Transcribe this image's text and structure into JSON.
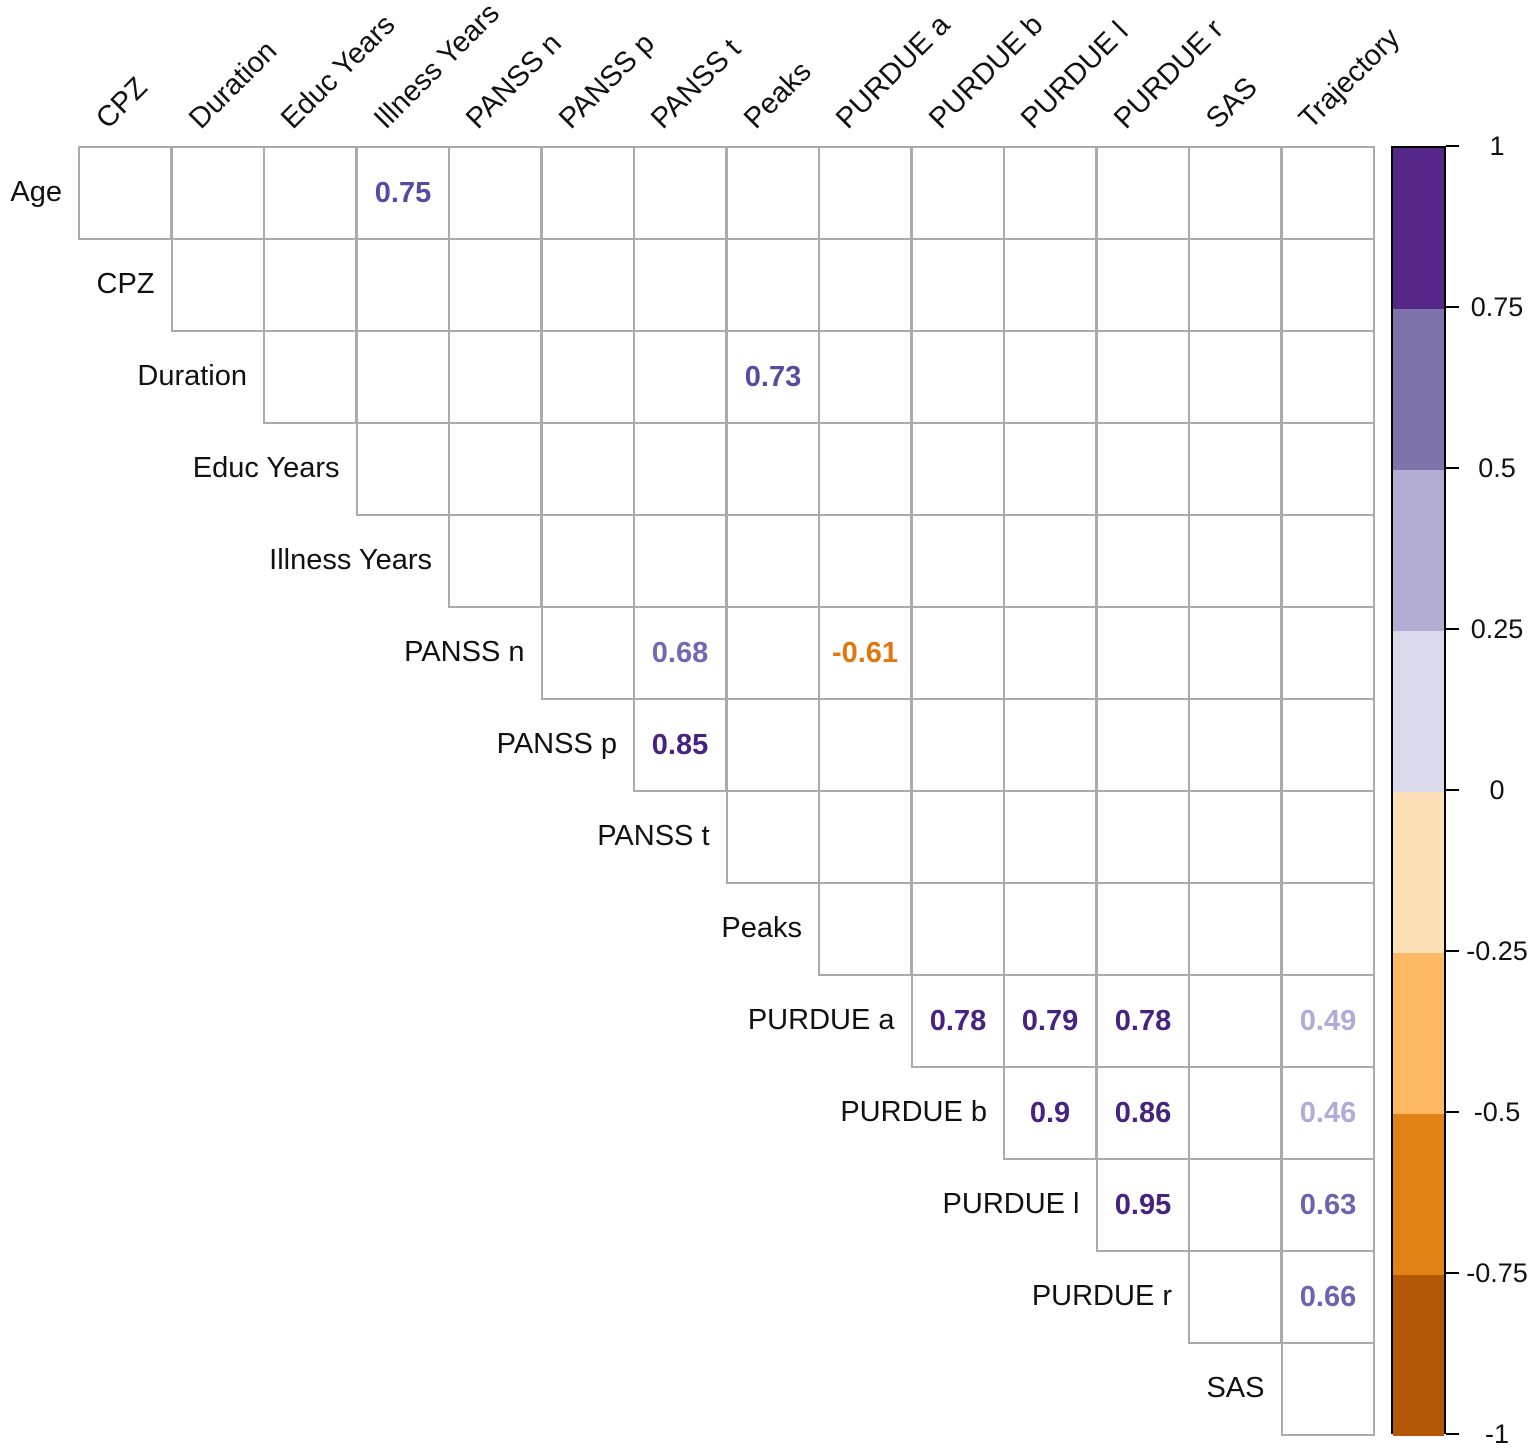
{
  "figure": {
    "background": "#ffffff",
    "grid_line_color": "#ababab",
    "label_color": "#111111"
  },
  "matrix": {
    "row_labels": [
      "Age",
      "CPZ",
      "Duration",
      "Educ Years",
      "Illness Years",
      "PANSS n",
      "PANSS p",
      "PANSS t",
      "Peaks",
      "PURDUE a",
      "PURDUE b",
      "PURDUE l",
      "PURDUE r",
      "SAS"
    ],
    "col_labels": [
      "CPZ",
      "Duration",
      "Educ Years",
      "Illness Years",
      "PANSS n",
      "PANSS p",
      "PANSS t",
      "Peaks",
      "PURDUE a",
      "PURDUE b",
      "PURDUE l",
      "PURDUE r",
      "SAS",
      "Trajectory"
    ],
    "cells": [
      {
        "row": "Age",
        "col": "Illness Years",
        "value": "0.75",
        "color": "#564ba1"
      },
      {
        "row": "Duration",
        "col": "Peaks",
        "value": "0.73",
        "color": "#564ba1"
      },
      {
        "row": "PANSS n",
        "col": "PANSS t",
        "value": "0.68",
        "color": "#7568b1"
      },
      {
        "row": "PANSS n",
        "col": "PURDUE a",
        "value": "-0.61",
        "color": "#e2770f"
      },
      {
        "row": "PANSS p",
        "col": "PANSS t",
        "value": "0.85",
        "color": "#472380"
      },
      {
        "row": "PURDUE a",
        "col": "PURDUE b",
        "value": "0.78",
        "color": "#472380"
      },
      {
        "row": "PURDUE a",
        "col": "PURDUE l",
        "value": "0.79",
        "color": "#472380"
      },
      {
        "row": "PURDUE a",
        "col": "PURDUE r",
        "value": "0.78",
        "color": "#472380"
      },
      {
        "row": "PURDUE a",
        "col": "Trajectory",
        "value": "0.49",
        "color": "#b2aad7"
      },
      {
        "row": "PURDUE b",
        "col": "PURDUE l",
        "value": "0.9",
        "color": "#472380"
      },
      {
        "row": "PURDUE b",
        "col": "PURDUE r",
        "value": "0.86",
        "color": "#472380"
      },
      {
        "row": "PURDUE b",
        "col": "Trajectory",
        "value": "0.46",
        "color": "#b2aad7"
      },
      {
        "row": "PURDUE l",
        "col": "PURDUE r",
        "value": "0.95",
        "color": "#472380"
      },
      {
        "row": "PURDUE l",
        "col": "Trajectory",
        "value": "0.63",
        "color": "#6f63ae"
      },
      {
        "row": "PURDUE r",
        "col": "Trajectory",
        "value": "0.66",
        "color": "#6f63ae"
      }
    ]
  },
  "colorbar": {
    "segments": [
      "#542788",
      "#8073ac",
      "#b2abd2",
      "#d8daeb",
      "#fee0b6",
      "#fdb863",
      "#e08214",
      "#b35806"
    ],
    "tick_labels": [
      "1",
      "0.75",
      "0.5",
      "0.25",
      "0",
      "-0.25",
      "-0.5",
      "-0.75",
      "-1"
    ]
  },
  "chart_data": {
    "type": "heatmap",
    "subtype": "upper-triangle correlation matrix, significant values shown as colored numbers",
    "title": "",
    "variables": [
      "Age",
      "CPZ",
      "Duration",
      "Educ Years",
      "Illness Years",
      "PANSS n",
      "PANSS p",
      "PANSS t",
      "Peaks",
      "PURDUE a",
      "PURDUE b",
      "PURDUE l",
      "PURDUE r",
      "SAS",
      "Trajectory"
    ],
    "row_labels": [
      "Age",
      "CPZ",
      "Duration",
      "Educ Years",
      "Illness Years",
      "PANSS n",
      "PANSS p",
      "PANSS t",
      "Peaks",
      "PURDUE a",
      "PURDUE b",
      "PURDUE l",
      "PURDUE r",
      "SAS"
    ],
    "col_labels": [
      "CPZ",
      "Duration",
      "Educ Years",
      "Illness Years",
      "PANSS n",
      "PANSS p",
      "PANSS t",
      "Peaks",
      "PURDUE a",
      "PURDUE b",
      "PURDUE l",
      "PURDUE r",
      "SAS",
      "Trajectory"
    ],
    "shown_correlations": [
      {
        "x": "Age",
        "y": "Illness Years",
        "r": 0.75
      },
      {
        "x": "Duration",
        "y": "Peaks",
        "r": 0.73
      },
      {
        "x": "PANSS n",
        "y": "PANSS t",
        "r": 0.68
      },
      {
        "x": "PANSS n",
        "y": "PURDUE a",
        "r": -0.61
      },
      {
        "x": "PANSS p",
        "y": "PANSS t",
        "r": 0.85
      },
      {
        "x": "PURDUE a",
        "y": "PURDUE b",
        "r": 0.78
      },
      {
        "x": "PURDUE a",
        "y": "PURDUE l",
        "r": 0.79
      },
      {
        "x": "PURDUE a",
        "y": "PURDUE r",
        "r": 0.78
      },
      {
        "x": "PURDUE a",
        "y": "Trajectory",
        "r": 0.49
      },
      {
        "x": "PURDUE b",
        "y": "PURDUE l",
        "r": 0.9
      },
      {
        "x": "PURDUE b",
        "y": "PURDUE r",
        "r": 0.86
      },
      {
        "x": "PURDUE b",
        "y": "Trajectory",
        "r": 0.46
      },
      {
        "x": "PURDUE l",
        "y": "PURDUE r",
        "r": 0.95
      },
      {
        "x": "PURDUE l",
        "y": "Trajectory",
        "r": 0.63
      },
      {
        "x": "PURDUE r",
        "y": "Trajectory",
        "r": 0.66
      }
    ],
    "colorbar": {
      "range": [
        -1,
        1
      ],
      "ticks": [
        1,
        0.75,
        0.5,
        0.25,
        0,
        -0.25,
        -0.5,
        -0.75,
        -1
      ],
      "bin_colors_top_to_bottom": [
        "#542788",
        "#8073ac",
        "#b2abd2",
        "#d8daeb",
        "#fee0b6",
        "#fdb863",
        "#e08214",
        "#b35806"
      ],
      "position": "right"
    },
    "grid": true,
    "legend_position": "right"
  }
}
